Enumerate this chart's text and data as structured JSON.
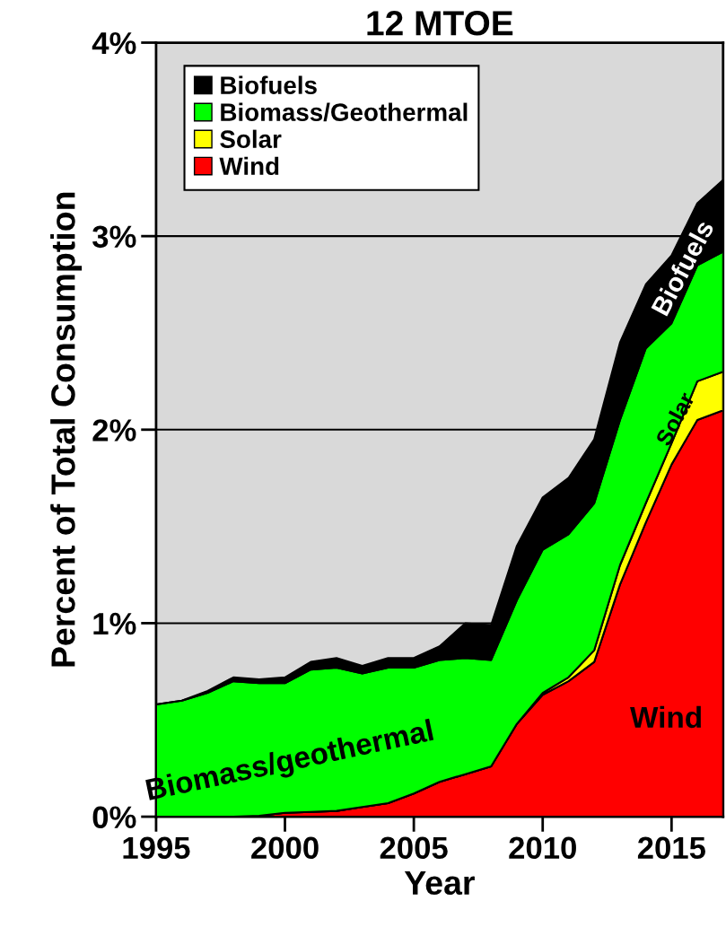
{
  "chart_data": {
    "type": "area",
    "stacked": true,
    "title": "12 MTOE",
    "xlabel": "Year",
    "ylabel": "Percent of Total Consumption",
    "x": [
      1995,
      1996,
      1997,
      1998,
      1999,
      2000,
      2001,
      2002,
      2003,
      2004,
      2005,
      2006,
      2007,
      2008,
      2009,
      2010,
      2011,
      2012,
      2013,
      2014,
      2015,
      2016,
      2017
    ],
    "series": [
      {
        "name": "Wind",
        "color": "#ff0000",
        "values": [
          0,
          0,
          0,
          0,
          0.005,
          0.02,
          0.025,
          0.03,
          0.05,
          0.07,
          0.12,
          0.18,
          0.22,
          0.26,
          0.48,
          0.63,
          0.7,
          0.8,
          1.2,
          1.52,
          1.82,
          2.05,
          2.1
        ]
      },
      {
        "name": "Solar",
        "color": "#ffff00",
        "values": [
          0,
          0,
          0,
          0,
          0,
          0,
          0,
          0,
          0,
          0,
          0,
          0,
          0,
          0,
          0,
          0.01,
          0.02,
          0.06,
          0.1,
          0.1,
          0.11,
          0.2,
          0.2
        ]
      },
      {
        "name": "Biomass/Geothermal",
        "color": "#00ff00",
        "values": [
          0.58,
          0.6,
          0.64,
          0.7,
          0.685,
          0.67,
          0.735,
          0.74,
          0.69,
          0.7,
          0.65,
          0.63,
          0.6,
          0.55,
          0.64,
          0.74,
          0.74,
          0.76,
          0.75,
          0.8,
          0.62,
          0.6,
          0.62
        ]
      },
      {
        "name": "Biofuels",
        "color": "#000000",
        "values": [
          0,
          0,
          0.01,
          0.02,
          0.02,
          0.03,
          0.04,
          0.05,
          0.04,
          0.05,
          0.05,
          0.07,
          0.18,
          0.18,
          0.28,
          0.27,
          0.29,
          0.33,
          0.4,
          0.33,
          0.35,
          0.32,
          0.37
        ]
      }
    ],
    "xlim": [
      1995,
      2017
    ],
    "ylim": [
      0,
      4
    ],
    "xticks": [
      1995,
      2000,
      2005,
      2010,
      2015
    ],
    "yticks": [
      {
        "value": 0,
        "label": "0%"
      },
      {
        "value": 1,
        "label": "1%"
      },
      {
        "value": 2,
        "label": "2%"
      },
      {
        "value": 3,
        "label": "3%"
      },
      {
        "value": 4,
        "label": "4%"
      }
    ],
    "grid": "y",
    "legend": "top left",
    "annotations": [
      "Biomass/geothermal",
      "Wind",
      "Biofuels",
      "Solar"
    ]
  }
}
